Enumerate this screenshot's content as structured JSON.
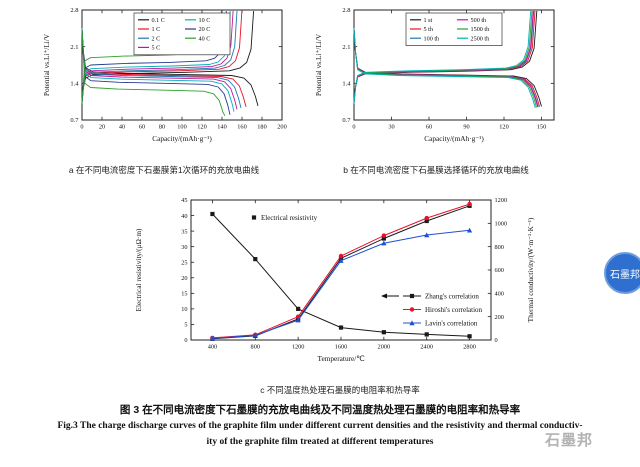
{
  "captions": {
    "a": "a 在不同电流密度下石墨膜第1次循环的充放电曲线",
    "b": "b 在不同电流密度下石墨膜选择循环的充放电曲线",
    "c": "c 不同温度热处理石墨膜的电阻率和热导率",
    "figure_cn": "图 3  在不同电流密度下石墨膜的充放电曲线及不同温度热处理石墨膜的电阻率和热导率",
    "figure_en_1": "Fig.3 The charge discharge curves of the graphite film under different current densities and the resistivity and thermal conductiv-",
    "figure_en_2": "ity of the graphite film treated at different temperatures"
  },
  "watermark": {
    "text": "石墨邦",
    "badge_text": "石墨邦",
    "badge_color": "#2e6fd0"
  },
  "chart_data": [
    {
      "id": "chart-a",
      "type": "line",
      "xlabel": "Capacity/(mAh·g⁻¹)",
      "ylabel": "Potential vs.Li⁺/Li/V",
      "xlim": [
        0,
        200
      ],
      "xticks": [
        0,
        20,
        40,
        60,
        80,
        100,
        120,
        140,
        160,
        180,
        200
      ],
      "ylim": [
        0.7,
        2.8
      ],
      "yticks": [
        0.7,
        1.4,
        2.1,
        2.8
      ],
      "curve_model": "charge-discharge loop per rate",
      "legend_split": 4,
      "series": [
        {
          "name": "0.1 C",
          "color": "#1a1a1a",
          "capacity": 176,
          "discharge_plateau_V": 1.57,
          "charge_plateau_V": 1.6
        },
        {
          "name": "1 C",
          "color": "#e8112d",
          "capacity": 164,
          "discharge_plateau_V": 1.55,
          "charge_plateau_V": 1.63
        },
        {
          "name": "2 C",
          "color": "#1f77b4",
          "capacity": 159,
          "discharge_plateau_V": 1.53,
          "charge_plateau_V": 1.65
        },
        {
          "name": "5 C",
          "color": "#c0189c",
          "capacity": 155,
          "discharge_plateau_V": 1.5,
          "charge_plateau_V": 1.68
        },
        {
          "name": "10 C",
          "color": "#00b0b9",
          "capacity": 152,
          "discharge_plateau_V": 1.46,
          "charge_plateau_V": 1.72
        },
        {
          "name": "20 C",
          "color": "#2a3990",
          "capacity": 148,
          "discharge_plateau_V": 1.4,
          "charge_plateau_V": 1.79
        },
        {
          "name": "40 C",
          "color": "#2ca02c",
          "capacity": 143,
          "discharge_plateau_V": 1.27,
          "charge_plateau_V": 1.93
        }
      ]
    },
    {
      "id": "chart-b",
      "type": "line",
      "xlabel": "Capacity/(mAh·g⁻¹)",
      "ylabel": "Potential vs.Li⁺/Li/V",
      "xlim": [
        0,
        160
      ],
      "xticks": [
        0,
        30,
        60,
        90,
        120,
        150
      ],
      "ylim": [
        0.7,
        2.8
      ],
      "yticks": [
        0.7,
        1.4,
        2.1,
        2.8
      ],
      "curve_model": "charge-discharge loop per cycle",
      "legend_split": 3,
      "series": [
        {
          "name": "1 st",
          "color": "#1a1a1a",
          "capacity": 150.0,
          "discharge_plateau_V": 1.56,
          "charge_plateau_V": 1.62
        },
        {
          "name": "5 th",
          "color": "#e8112d",
          "capacity": 148.5,
          "discharge_plateau_V": 1.555,
          "charge_plateau_V": 1.625
        },
        {
          "name": "100 th",
          "color": "#1f77b4",
          "capacity": 147.5,
          "discharge_plateau_V": 1.55,
          "charge_plateau_V": 1.63
        },
        {
          "name": "500 th",
          "color": "#c0189c",
          "capacity": 147.0,
          "discharge_plateau_V": 1.545,
          "charge_plateau_V": 1.635
        },
        {
          "name": "1500 th",
          "color": "#2ca02c",
          "capacity": 146.0,
          "discharge_plateau_V": 1.54,
          "charge_plateau_V": 1.64
        },
        {
          "name": "2500 th",
          "color": "#00b0b9",
          "capacity": 145.0,
          "discharge_plateau_V": 1.53,
          "charge_plateau_V": 1.65
        }
      ]
    },
    {
      "id": "chart-c",
      "type": "scatter",
      "xlabel": "Temperature/℃",
      "ylabel_left": "Electrical resistivity/(μΩ·m)",
      "ylabel_right": "Thermal conductivity/(W·m⁻¹·K⁻¹)",
      "xlim": [
        200,
        3000
      ],
      "xticks": [
        400,
        800,
        1200,
        1600,
        2000,
        2400,
        2800
      ],
      "ylim_left": [
        0,
        45
      ],
      "yticks_left": [
        0,
        5,
        10,
        15,
        20,
        25,
        30,
        35,
        40,
        45
      ],
      "ylim_right": [
        0,
        1200
      ],
      "yticks_right": [
        0,
        200,
        400,
        600,
        800,
        1000,
        1200
      ],
      "x": [
        400,
        800,
        1200,
        1600,
        2000,
        2400,
        2800
      ],
      "series": [
        {
          "name": "Electrical resistivity",
          "axis": "left",
          "marker": "square",
          "color": "#1a1a1a",
          "values": [
            40.5,
            26,
            10,
            4,
            2.5,
            1.8,
            1.2
          ]
        },
        {
          "name": "Zhang's correlation",
          "axis": "right",
          "marker": "square",
          "color": "#1a1a1a",
          "values": [
            10,
            35,
            180,
            700,
            870,
            1020,
            1150
          ]
        },
        {
          "name": "Hiroshi's correlation",
          "axis": "right",
          "marker": "circle",
          "color": "#e8112d",
          "values": [
            18,
            45,
            200,
            720,
            895,
            1045,
            1165
          ]
        },
        {
          "name": "Lavin's correlation",
          "axis": "right",
          "marker": "triangle",
          "color": "#1f4fd8",
          "values": [
            14,
            40,
            170,
            680,
            830,
            900,
            940
          ]
        }
      ]
    }
  ]
}
